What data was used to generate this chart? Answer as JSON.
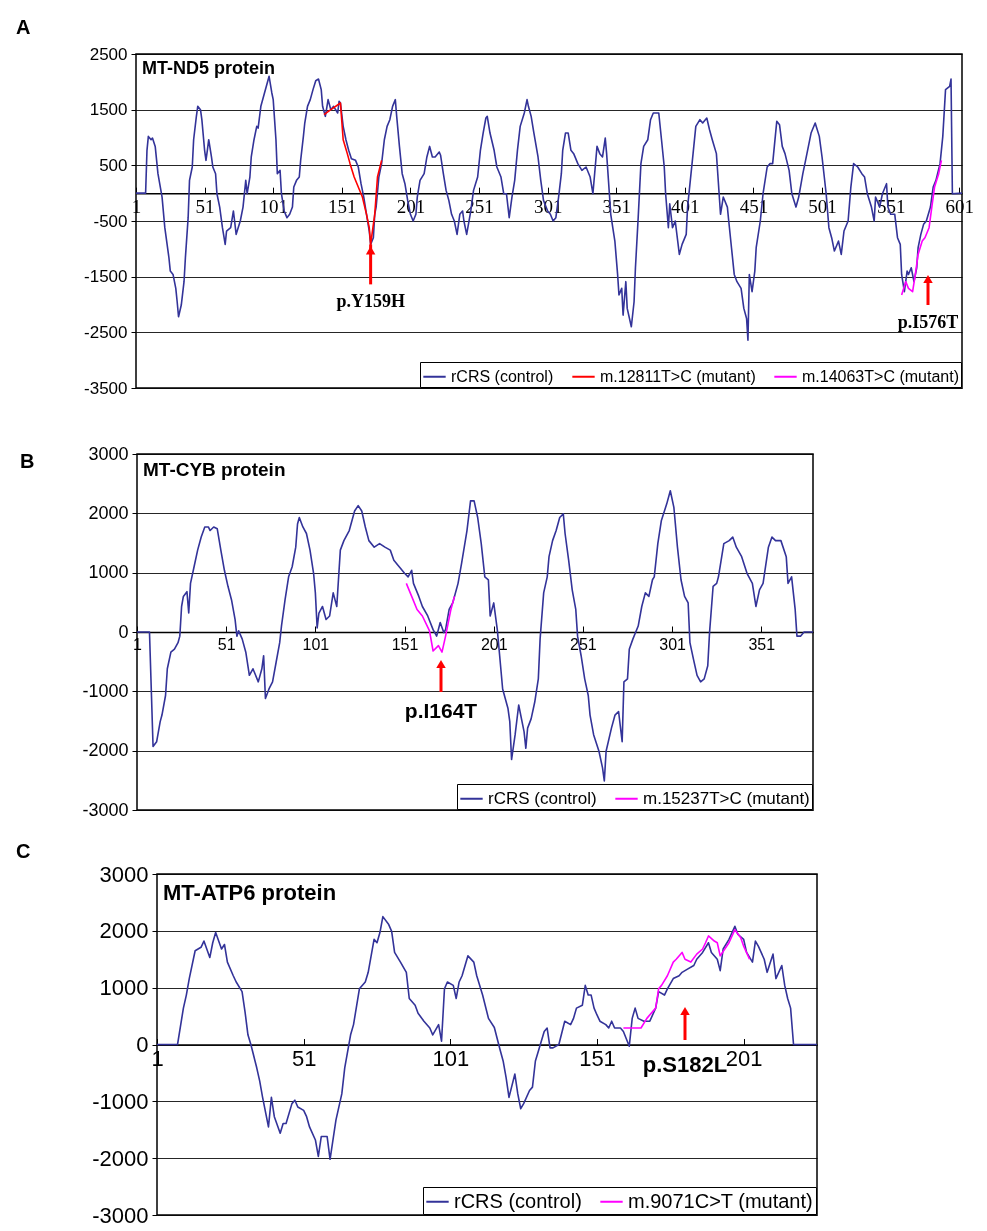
{
  "chart_data": [
    {
      "type": "line",
      "title": "MT-ND5 protein",
      "annotations": [
        "A",
        {
          "text": "p.Y159H",
          "x": 172,
          "y": -920
        },
        "p.I576T"
      ],
      "xlim": [
        1,
        603
      ],
      "xticks": [
        1,
        51,
        101,
        151,
        201,
        251,
        301,
        351,
        401,
        451,
        501,
        551,
        601
      ],
      "ylim": [
        -3500,
        2500
      ],
      "yticks": [
        -3500,
        -2500,
        -1500,
        -500,
        500,
        1500,
        2500
      ],
      "grid": "y",
      "legend": "bottom right",
      "series": [
        {
          "name": "rCRS (control)",
          "color": "#333399",
          "x": [
            1,
            8,
            9,
            10,
            12,
            13,
            15,
            17,
            20,
            22,
            25,
            26,
            28,
            30,
            31,
            32,
            34,
            36,
            37,
            39,
            40,
            42,
            43,
            45,
            46,
            48,
            49,
            51,
            52,
            53,
            54,
            56,
            57,
            59,
            60,
            62,
            64,
            66,
            67,
            70,
            72,
            74,
            77,
            79,
            81,
            82,
            84,
            85,
            87,
            89,
            90,
            92,
            94,
            96,
            98,
            100,
            101,
            103,
            104,
            106,
            107,
            109,
            111,
            113,
            115,
            116,
            118,
            120,
            121,
            123,
            124,
            126,
            128,
            130,
            132,
            134,
            136,
            137,
            139,
            141,
            143,
            145,
            148,
            149,
            150,
            152,
            154,
            156,
            158,
            161,
            163,
            165,
            167,
            169,
            171,
            172,
            174,
            175,
            176,
            178,
            180,
            182,
            184,
            186,
            188,
            190,
            191,
            193,
            195,
            197,
            199,
            201,
            203,
            205,
            206,
            208,
            211,
            213,
            215,
            217,
            219,
            222,
            223,
            225,
            227,
            229,
            231,
            233,
            235,
            237,
            239,
            240,
            242,
            245,
            247,
            250,
            252,
            254,
            256,
            257,
            259,
            262,
            264,
            267,
            269,
            271,
            273,
            275,
            277,
            279,
            281,
            284,
            286,
            287,
            289,
            291,
            294,
            296,
            298,
            301,
            303,
            305,
            307,
            309,
            311,
            312,
            314,
            316,
            318,
            320,
            323,
            326,
            329,
            332,
            334,
            337,
            339,
            341,
            343,
            344,
            346,
            347,
            350,
            352,
            353,
            355,
            356,
            358,
            359,
            362,
            364,
            365,
            367,
            369,
            371,
            374,
            376,
            378,
            382,
            384,
            386,
            387,
            389,
            390,
            392,
            394,
            397,
            399,
            402,
            403,
            405,
            407,
            409,
            412,
            414,
            417,
            419,
            421,
            424,
            425,
            427,
            429,
            432,
            433,
            435,
            437,
            439,
            442,
            444,
            446,
            447,
            448,
            450,
            452,
            453,
            456,
            458,
            461,
            463,
            465,
            468,
            470,
            472,
            474,
            477,
            479,
            482,
            484,
            487,
            489,
            493,
            496,
            499,
            501,
            504,
            506,
            508,
            510,
            513,
            515,
            517,
            520,
            522,
            524,
            527,
            530,
            532,
            534,
            537,
            539,
            540,
            543,
            545,
            548,
            549,
            551,
            554,
            556,
            558,
            559,
            561,
            563,
            564,
            566,
            568,
            570,
            571,
            573,
            575,
            577,
            580,
            582,
            584,
            587,
            589,
            591,
            594,
            595,
            596,
            603
          ],
          "values": [
            0,
            0,
            770,
            1020,
            960,
            990,
            840,
            350,
            -70,
            -620,
            -1160,
            -1400,
            -1460,
            -1710,
            -1950,
            -2220,
            -2010,
            -1590,
            -1160,
            -440,
            230,
            470,
            960,
            1380,
            1560,
            1500,
            1320,
            770,
            590,
            770,
            960,
            650,
            470,
            350,
            -10,
            -250,
            -620,
            -920,
            -680,
            -620,
            -320,
            -740,
            -500,
            -250,
            230,
            -10,
            290,
            650,
            960,
            1200,
            1170,
            1560,
            1740,
            1920,
            2100,
            1800,
            1680,
            960,
            350,
            410,
            -10,
            -320,
            -440,
            -380,
            -250,
            110,
            230,
            290,
            590,
            1020,
            1260,
            1560,
            1680,
            1860,
            2020,
            2050,
            1860,
            1560,
            1380,
            1680,
            1500,
            1560,
            1440,
            1650,
            1620,
            1200,
            960,
            770,
            620,
            590,
            470,
            170,
            -70,
            -380,
            -680,
            -920,
            -800,
            -380,
            -250,
            290,
            530,
            960,
            1200,
            1320,
            1560,
            1680,
            1380,
            840,
            350,
            170,
            -130,
            -380,
            -500,
            -380,
            -70,
            230,
            350,
            650,
            840,
            650,
            650,
            740,
            680,
            350,
            50,
            -130,
            -380,
            -500,
            -740,
            -380,
            -320,
            -500,
            -740,
            -320,
            50,
            290,
            770,
            1080,
            1350,
            1380,
            1080,
            770,
            470,
            290,
            -10,
            -10,
            -440,
            -70,
            230,
            770,
            1200,
            1440,
            1680,
            1560,
            1380,
            1080,
            650,
            230,
            -130,
            -320,
            -380,
            -500,
            -440,
            -70,
            350,
            770,
            1080,
            1080,
            770,
            710,
            530,
            410,
            470,
            290,
            -10,
            840,
            710,
            650,
            990,
            710,
            -10,
            -380,
            -860,
            -1460,
            -1830,
            -1710,
            -2190,
            -1590,
            -2070,
            -2400,
            -1950,
            -1340,
            -440,
            530,
            840,
            960,
            1320,
            1440,
            1440,
            960,
            470,
            -10,
            -620,
            -190,
            -620,
            -500,
            -1100,
            -920,
            -740,
            -250,
            230,
            710,
            1200,
            1320,
            1260,
            1350,
            1140,
            960,
            710,
            350,
            -380,
            -70,
            -250,
            -500,
            -980,
            -1460,
            -1590,
            -1710,
            -2070,
            -2250,
            -2640,
            -1460,
            -1770,
            -1400,
            -980,
            -500,
            -10,
            470,
            530,
            530,
            1290,
            1230,
            840,
            710,
            410,
            -10,
            -250,
            -70,
            350,
            590,
            1080,
            1260,
            1020,
            650,
            -10,
            -620,
            -800,
            -1040,
            -860,
            -1100,
            -680,
            -500,
            110,
            530,
            470,
            350,
            290,
            -10,
            -250,
            -500,
            -70,
            -250,
            -10,
            170,
            -250,
            -380,
            -380,
            -800,
            -920,
            -1460,
            -1770,
            -1400,
            -1460,
            -1340,
            -1590,
            -1340,
            -980,
            -740,
            -560,
            -500,
            -250,
            110,
            230,
            530,
            1020,
            1860,
            1920,
            2050,
            -10,
            0
          ]
        },
        {
          "name": "m.12811T>C (mutant)",
          "color": "#ff0000",
          "x": [
            138,
            143,
            150,
            152,
            155,
            157,
            160,
            163,
            166,
            169,
            171,
            172,
            175,
            177,
            180
          ],
          "values": [
            1410,
            1500,
            1620,
            960,
            710,
            530,
            290,
            110,
            -70,
            -380,
            -620,
            -920,
            -380,
            290,
            590
          ]
        },
        {
          "name": "m.14063T>C (mutant)",
          "color": "#ff00ff",
          "x": [
            559,
            562,
            564,
            567,
            569,
            571,
            574,
            576,
            579,
            581,
            583,
            586,
            588
          ],
          "values": [
            -1830,
            -1590,
            -1710,
            -1770,
            -1460,
            -1100,
            -860,
            -800,
            -620,
            -250,
            110,
            350,
            590
          ]
        }
      ]
    },
    {
      "type": "line",
      "title": "MT-CYB protein",
      "annotations": [
        "B",
        "p.I164T"
      ],
      "xlim": [
        1,
        380
      ],
      "xticks": [
        1,
        51,
        101,
        151,
        201,
        251,
        301,
        351
      ],
      "ylim": [
        -3000,
        3000
      ],
      "yticks": [
        -3000,
        -2000,
        -1000,
        0,
        1000,
        2000,
        3000
      ],
      "grid": "y",
      "legend": "bottom right",
      "series": [
        {
          "name": "rCRS (control)",
          "color": "#333399",
          "x": [
            1,
            8,
            9,
            10,
            12,
            14,
            15,
            17,
            18,
            20,
            22,
            24,
            25,
            26,
            27,
            29,
            30,
            31,
            33,
            35,
            37,
            39,
            41,
            42,
            44,
            46,
            48,
            50,
            52,
            54,
            56,
            57,
            58,
            60,
            62,
            64,
            66,
            69,
            71,
            72,
            73,
            75,
            77,
            79,
            81,
            82,
            84,
            86,
            88,
            90,
            91,
            92,
            94,
            96,
            98,
            100,
            101,
            102,
            103,
            105,
            107,
            109,
            111,
            113,
            115,
            117,
            120,
            123,
            125,
            127,
            129,
            131,
            134,
            137,
            140,
            143,
            145,
            148,
            151,
            153,
            155,
            156,
            159,
            161,
            164,
            167,
            169,
            171,
            173,
            174,
            176,
            178,
            181,
            183,
            186,
            188,
            190,
            192,
            194,
            196,
            198,
            199,
            201,
            203,
            204,
            206,
            209,
            210,
            211,
            213,
            215,
            218,
            219,
            220,
            222,
            224,
            226,
            227,
            229,
            231,
            232,
            234,
            236,
            238,
            240,
            241,
            243,
            245,
            247,
            248,
            250,
            252,
            254,
            255,
            257,
            260,
            262,
            263,
            264,
            267,
            269,
            271,
            273,
            274,
            276,
            277,
            279,
            282,
            284,
            286,
            288,
            290,
            291,
            293,
            295,
            298,
            300,
            302,
            304,
            306,
            308,
            310,
            311,
            313,
            315,
            317,
            319,
            321,
            322,
            324,
            326,
            327,
            330,
            333,
            335,
            337,
            340,
            343,
            346,
            348,
            350,
            352,
            355,
            357,
            359,
            362,
            365,
            366,
            368,
            370,
            371,
            373,
            375,
            380
          ],
          "values": [
            0,
            0,
            -960,
            -1930,
            -1850,
            -1510,
            -1400,
            -1070,
            -620,
            -340,
            -290,
            -180,
            -70,
            430,
            600,
            680,
            320,
            820,
            1100,
            1380,
            1600,
            1770,
            1770,
            1710,
            1770,
            1740,
            1380,
            1040,
            770,
            540,
            210,
            -70,
            20,
            -120,
            -340,
            -730,
            -620,
            -840,
            -620,
            -400,
            -1120,
            -960,
            -840,
            -510,
            -180,
            100,
            540,
            930,
            1100,
            1430,
            1820,
            1930,
            1770,
            1660,
            1380,
            990,
            660,
            70,
            320,
            430,
            210,
            270,
            660,
            430,
            1380,
            1540,
            1710,
            2040,
            2130,
            2040,
            1770,
            1540,
            1430,
            1490,
            1430,
            1380,
            1210,
            1100,
            990,
            930,
            1040,
            820,
            600,
            430,
            270,
            40,
            -70,
            160,
            -10,
            40,
            380,
            490,
            820,
            1160,
            1710,
            2210,
            2210,
            1930,
            1490,
            930,
            880,
            270,
            490,
            40,
            -290,
            -960,
            -1290,
            -1510,
            -2150,
            -1730,
            -1230,
            -1680,
            -1960,
            -1620,
            -1460,
            -1180,
            -790,
            -120,
            660,
            930,
            1270,
            1540,
            1710,
            1930,
            1990,
            1660,
            1210,
            710,
            380,
            -70,
            -400,
            -790,
            -1070,
            -1400,
            -1730,
            -2010,
            -2290,
            -2510,
            -2010,
            -1620,
            -1400,
            -1340,
            -1850,
            -840,
            -790,
            -290,
            -120,
            100,
            430,
            660,
            600,
            880,
            930,
            1490,
            1880,
            2160,
            2380,
            2100,
            1430,
            880,
            600,
            490,
            -180,
            -460,
            -730,
            -840,
            -790,
            -570,
            -10,
            770,
            820,
            930,
            1490,
            1540,
            1600,
            1430,
            1270,
            990,
            820,
            430,
            710,
            820,
            1430,
            1600,
            1540,
            1540,
            1270,
            820,
            930,
            380,
            -70,
            -70,
            0,
            0
          ]
        },
        {
          "name": "m.15237T>C (mutant)",
          "color": "#ff00ff",
          "x": [
            152,
            155,
            158,
            161,
            165,
            167,
            170,
            172,
            174,
            177,
            179
          ],
          "values": [
            820,
            600,
            380,
            270,
            20,
            -320,
            -230,
            -340,
            -70,
            380,
            600
          ]
        }
      ]
    },
    {
      "type": "line",
      "title": "MT-ATP6 protein",
      "annotations": [
        "C",
        "p.S182L"
      ],
      "xlim": [
        1,
        226
      ],
      "xticks": [
        1,
        51,
        101,
        151,
        201
      ],
      "ylim": [
        -3000,
        3000
      ],
      "yticks": [
        -3000,
        -2000,
        -1000,
        0,
        1000,
        2000,
        3000
      ],
      "grid": "y",
      "legend": "bottom right",
      "series": [
        {
          "name": "rCRS (control)",
          "color": "#333399",
          "x": [
            1,
            8,
            10,
            11,
            12,
            14,
            16,
            17,
            19,
            20,
            21,
            23,
            24,
            25,
            27,
            28,
            30,
            31,
            32,
            33,
            35,
            36,
            37,
            39,
            40,
            41,
            43,
            44,
            45,
            47,
            48,
            49,
            51,
            52,
            53,
            55,
            56,
            57,
            59,
            60,
            62,
            64,
            65,
            67,
            68,
            70,
            72,
            73,
            75,
            76,
            77,
            78,
            80,
            81,
            82,
            84,
            86,
            87,
            89,
            90,
            92,
            94,
            95,
            97,
            98,
            99,
            100,
            102,
            103,
            104,
            105,
            107,
            109,
            110,
            112,
            114,
            116,
            118,
            119,
            120,
            121,
            123,
            124,
            125,
            126,
            128,
            129,
            130,
            131,
            133,
            134,
            135,
            136,
            138,
            140,
            142,
            143,
            144,
            146,
            147,
            148,
            149,
            150,
            151,
            152,
            154,
            155,
            156,
            157,
            159,
            160,
            162,
            163,
            164,
            165,
            167,
            169,
            171,
            172,
            174,
            175,
            177,
            179,
            180,
            182,
            184,
            185,
            187,
            189,
            190,
            192,
            193,
            194,
            196,
            198,
            199,
            201,
            202,
            204,
            205,
            206,
            208,
            209,
            211,
            212,
            214,
            215,
            216,
            217,
            218,
            226
          ],
          "values": [
            0,
            0,
            640,
            870,
            1160,
            1650,
            1710,
            1820,
            1530,
            1790,
            1970,
            1680,
            1760,
            1450,
            1210,
            1100,
            930,
            580,
            170,
            0,
            -410,
            -640,
            -930,
            -1450,
            -930,
            -1270,
            -1560,
            -1390,
            -1390,
            -1040,
            -980,
            -1100,
            -1160,
            -1270,
            -1450,
            -1680,
            -1970,
            -1620,
            -1620,
            -2020,
            -1330,
            -870,
            -410,
            170,
            350,
            980,
            1100,
            1270,
            1850,
            1790,
            1970,
            2250,
            2110,
            1990,
            1620,
            1450,
            1270,
            810,
            690,
            550,
            410,
            290,
            170,
            350,
            60,
            980,
            1100,
            1040,
            810,
            1100,
            1210,
            1560,
            1450,
            1210,
            870,
            460,
            300,
            -100,
            -290,
            -580,
            -930,
            -520,
            -870,
            -1130,
            -1040,
            -810,
            -750,
            -290,
            -120,
            230,
            290,
            -60,
            -60,
            0,
            410,
            350,
            460,
            640,
            690,
            1040,
            870,
            870,
            640,
            520,
            410,
            350,
            290,
            410,
            290,
            290,
            230,
            -30,
            460,
            640,
            460,
            410,
            410,
            640,
            930,
            870,
            980,
            1160,
            1210,
            1270,
            1330,
            1390,
            1500,
            1620,
            1790,
            1620,
            1500,
            1300,
            1680,
            1850,
            2080,
            1940,
            1850,
            1620,
            1450,
            1820,
            1730,
            1500,
            1270,
            1590,
            1160,
            1390,
            1040,
            810,
            640,
            0,
            0
          ]
        },
        {
          "name": "m.9071C>T (mutant)",
          "color": "#ff00ff",
          "x": [
            160,
            166,
            168,
            171,
            172,
            173,
            175,
            177,
            178,
            180,
            181,
            183,
            185,
            187,
            188,
            189,
            191,
            192,
            193,
            196,
            198,
            200,
            201,
            203
          ],
          "values": [
            290,
            290,
            460,
            640,
            980,
            1040,
            1210,
            1450,
            1500,
            1620,
            1500,
            1450,
            1590,
            1680,
            1790,
            1910,
            1820,
            1790,
            1560,
            1790,
            2020,
            1880,
            1730,
            1500
          ]
        }
      ]
    }
  ]
}
